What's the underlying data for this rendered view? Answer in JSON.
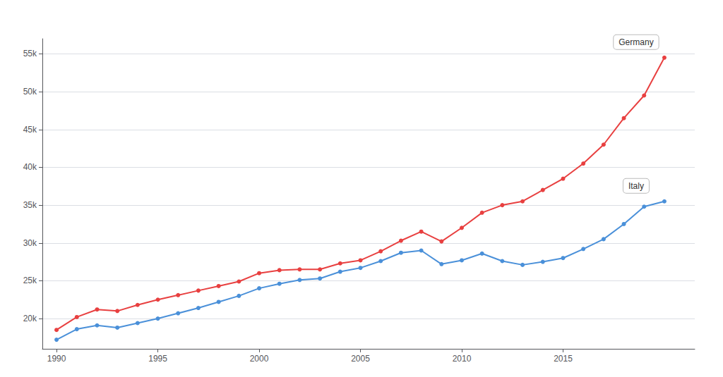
{
  "chart_data": {
    "type": "line",
    "x": [
      1990,
      1991,
      1992,
      1993,
      1994,
      1995,
      1996,
      1997,
      1998,
      1999,
      2000,
      2001,
      2002,
      2003,
      2004,
      2005,
      2006,
      2007,
      2008,
      2009,
      2010,
      2011,
      2012,
      2013,
      2014,
      2015,
      2016,
      2017,
      2018,
      2019,
      2020
    ],
    "series": [
      {
        "name": "Germany",
        "color": "#e84040",
        "marker": "circle",
        "values": [
          18500,
          20200,
          21200,
          21000,
          21800,
          22500,
          23100,
          23700,
          24300,
          24900,
          26000,
          26400,
          26500,
          26500,
          27300,
          27700,
          28900,
          30300,
          31500,
          30200,
          32000,
          34000,
          35000,
          35500,
          37000,
          38500,
          40500,
          43000,
          46500,
          49500,
          54500
        ]
      },
      {
        "name": "Italy",
        "color": "#4a90d9",
        "marker": "circle",
        "values": [
          17200,
          18600,
          19100,
          18800,
          19400,
          20000,
          20700,
          21400,
          22200,
          23000,
          24000,
          24600,
          25100,
          25300,
          26200,
          26700,
          27600,
          28700,
          29000,
          27200,
          27700,
          28600,
          27600,
          27100,
          27500,
          28000,
          29200,
          30500,
          32500,
          34800,
          35500
        ]
      }
    ],
    "annotations": [
      "Germany",
      "Italy"
    ],
    "xlim": [
      1989.3,
      2021.5
    ],
    "xticks": [
      1990,
      1995,
      2000,
      2005,
      2010,
      2015
    ],
    "ylim": [
      16000,
      57000
    ],
    "yticks": [
      {
        "value": 20000,
        "label": "20k"
      },
      {
        "value": 25000,
        "label": "25k"
      },
      {
        "value": 30000,
        "label": "30k"
      },
      {
        "value": 35000,
        "label": "35k"
      },
      {
        "value": 40000,
        "label": "40k"
      },
      {
        "value": 45000,
        "label": "45k"
      },
      {
        "value": 50000,
        "label": "50k"
      },
      {
        "value": 55000,
        "label": "55k"
      }
    ],
    "grid": true
  }
}
